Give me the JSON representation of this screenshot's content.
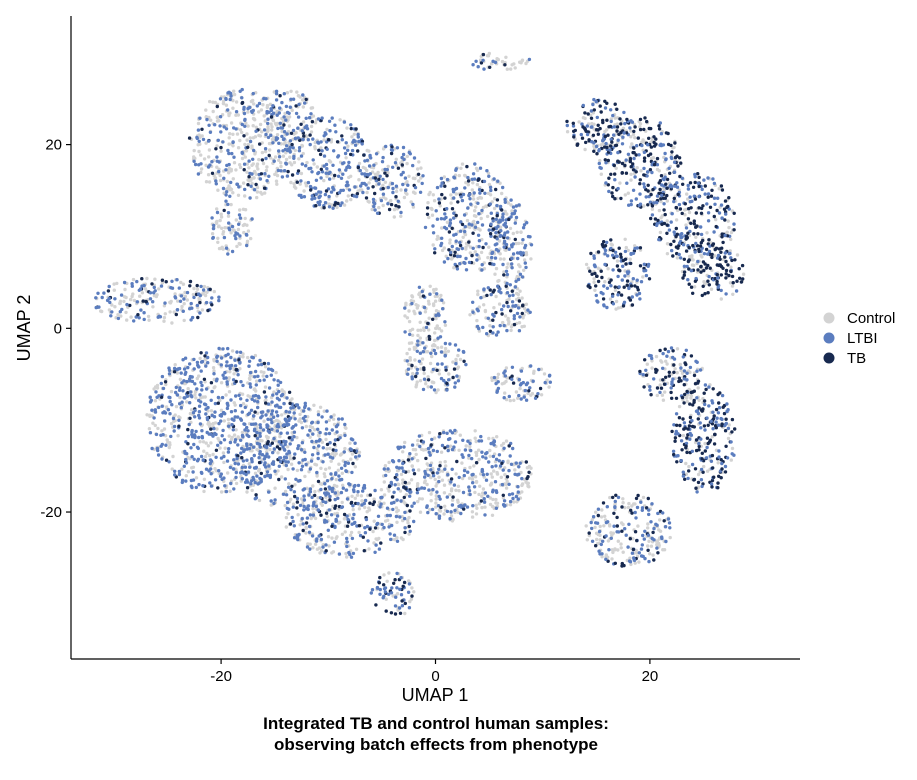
{
  "chart_data": {
    "type": "scatter",
    "xlabel": "UMAP 1",
    "ylabel": "UMAP 2",
    "xlim": [
      -34,
      34
    ],
    "ylim": [
      -36,
      34
    ],
    "xticks": [
      -20,
      0,
      20
    ],
    "yticks": [
      -20,
      0,
      20
    ],
    "xtick_labels": [
      "-20",
      "0",
      "20"
    ],
    "ytick_labels": [
      "-20",
      "0",
      "20"
    ],
    "grid": false,
    "legend_position": "right",
    "caption_line1": "Integrated TB and control human samples:",
    "caption_line2": "observing batch effects from phenotype",
    "series": [
      {
        "name": "Control",
        "color": "#d3d3d3"
      },
      {
        "name": "LTBI",
        "color": "#5b7dbf"
      },
      {
        "name": "TB",
        "color": "#17294f"
      }
    ],
    "clusters": [
      {
        "cx": -18,
        "cy": 20,
        "rx": 5,
        "ry": 6,
        "mix": [
          0.62,
          0.33,
          0.05
        ]
      },
      {
        "cx": -14,
        "cy": 23,
        "rx": 3,
        "ry": 3,
        "mix": [
          0.6,
          0.35,
          0.05
        ]
      },
      {
        "cx": -19,
        "cy": 11,
        "rx": 2,
        "ry": 3,
        "mix": [
          0.6,
          0.36,
          0.04
        ]
      },
      {
        "cx": -10,
        "cy": 18,
        "rx": 4,
        "ry": 5,
        "mix": [
          0.35,
          0.55,
          0.1
        ]
      },
      {
        "cx": -4,
        "cy": 16,
        "rx": 3,
        "ry": 4,
        "mix": [
          0.5,
          0.4,
          0.1
        ]
      },
      {
        "cx": 3,
        "cy": 12,
        "rx": 4,
        "ry": 6,
        "mix": [
          0.45,
          0.45,
          0.1
        ]
      },
      {
        "cx": 7,
        "cy": 9,
        "rx": 2,
        "ry": 5,
        "mix": [
          0.45,
          0.45,
          0.1
        ]
      },
      {
        "cx": -1,
        "cy": 1,
        "rx": 2,
        "ry": 4,
        "mix": [
          0.8,
          0.18,
          0.02
        ]
      },
      {
        "cx": 6,
        "cy": 2,
        "rx": 3,
        "ry": 3,
        "mix": [
          0.5,
          0.4,
          0.1
        ]
      },
      {
        "cx": -26,
        "cy": 3,
        "rx": 6,
        "ry": 2.5,
        "mix": [
          0.5,
          0.4,
          0.1
        ]
      },
      {
        "cx": -20,
        "cy": -10,
        "rx": 7,
        "ry": 8,
        "mix": [
          0.4,
          0.55,
          0.05
        ]
      },
      {
        "cx": -13,
        "cy": -14,
        "rx": 6,
        "ry": 6,
        "mix": [
          0.5,
          0.45,
          0.05
        ]
      },
      {
        "cx": -8,
        "cy": -21,
        "rx": 6,
        "ry": 4,
        "mix": [
          0.45,
          0.45,
          0.1
        ]
      },
      {
        "cx": 2,
        "cy": -16,
        "rx": 7,
        "ry": 5,
        "mix": [
          0.5,
          0.4,
          0.1
        ]
      },
      {
        "cx": 0,
        "cy": -4,
        "rx": 3,
        "ry": 3,
        "mix": [
          0.55,
          0.35,
          0.1
        ]
      },
      {
        "cx": 8,
        "cy": -6,
        "rx": 3,
        "ry": 2,
        "mix": [
          0.55,
          0.35,
          0.1
        ]
      },
      {
        "cx": -4,
        "cy": -29,
        "rx": 2,
        "ry": 2.5,
        "mix": [
          0.4,
          0.4,
          0.2
        ]
      },
      {
        "cx": 6,
        "cy": 29,
        "rx": 3,
        "ry": 1,
        "mix": [
          0.7,
          0.15,
          0.15
        ]
      },
      {
        "cx": 15,
        "cy": 22,
        "rx": 3,
        "ry": 3,
        "mix": [
          0.3,
          0.3,
          0.4
        ]
      },
      {
        "cx": 19,
        "cy": 18,
        "rx": 4,
        "ry": 5,
        "mix": [
          0.25,
          0.3,
          0.45
        ]
      },
      {
        "cx": 24,
        "cy": 12,
        "rx": 4,
        "ry": 5,
        "mix": [
          0.25,
          0.3,
          0.45
        ]
      },
      {
        "cx": 17,
        "cy": 6,
        "rx": 3,
        "ry": 4,
        "mix": [
          0.25,
          0.35,
          0.4
        ]
      },
      {
        "cx": 26,
        "cy": 6,
        "rx": 3,
        "ry": 3,
        "mix": [
          0.25,
          0.25,
          0.5
        ]
      },
      {
        "cx": 22,
        "cy": -5,
        "rx": 3,
        "ry": 3,
        "mix": [
          0.4,
          0.35,
          0.25
        ]
      },
      {
        "cx": 25,
        "cy": -12,
        "rx": 3,
        "ry": 6,
        "mix": [
          0.2,
          0.25,
          0.55
        ]
      },
      {
        "cx": 18,
        "cy": -22,
        "rx": 4,
        "ry": 4,
        "mix": [
          0.45,
          0.35,
          0.2
        ]
      }
    ]
  }
}
